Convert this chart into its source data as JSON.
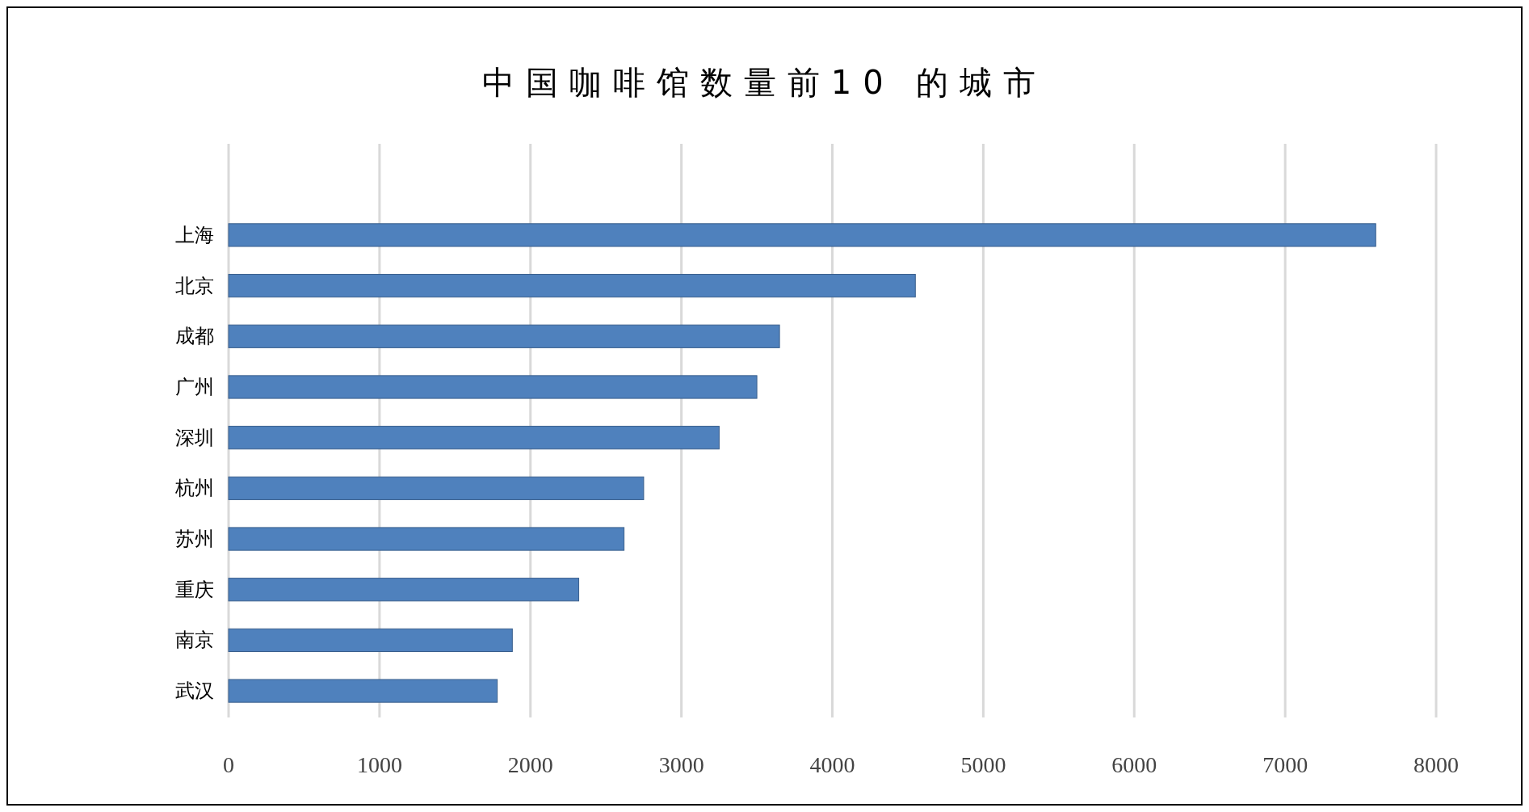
{
  "chart_data": {
    "type": "bar",
    "orientation": "horizontal",
    "title": "中国咖啡馆数量前10 的城市",
    "categories": [
      "上海",
      "北京",
      "成都",
      "广州",
      "深圳",
      "杭州",
      "苏州",
      "重庆",
      "南京",
      "武汉"
    ],
    "values": [
      7600,
      4550,
      3650,
      3500,
      3250,
      2750,
      2620,
      2320,
      1880,
      1780
    ],
    "color": "#4f81bd",
    "xlim": [
      0,
      8000
    ],
    "xticks": [
      0,
      1000,
      2000,
      3000,
      4000,
      5000,
      6000,
      7000,
      8000
    ],
    "grid": "x"
  }
}
